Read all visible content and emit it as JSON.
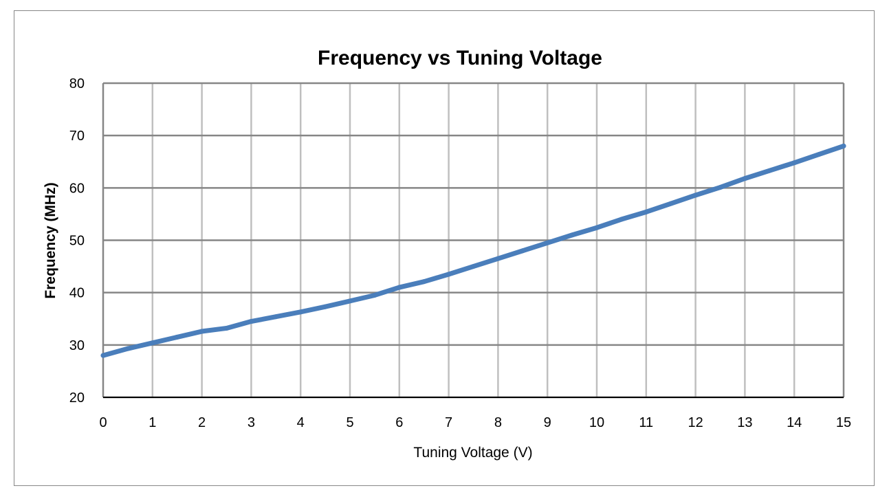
{
  "chart_data": {
    "type": "line",
    "title": "Frequency vs Tuning Voltage",
    "xlabel": "Tuning Voltage (V)",
    "ylabel": "Frequency (MHz)",
    "xlim": [
      0,
      15
    ],
    "ylim": [
      20,
      80
    ],
    "xticks": [
      "0",
      "1",
      "2",
      "3",
      "4",
      "5",
      "6",
      "7",
      "8",
      "9",
      "10",
      "11",
      "12",
      "13",
      "14",
      "15"
    ],
    "yticks": [
      "20",
      "30",
      "40",
      "50",
      "60",
      "70",
      "80"
    ],
    "grid": true,
    "legend": "none",
    "series": [
      {
        "color": "#4a7ebb",
        "x": [
          0,
          0.5,
          1,
          1.5,
          2,
          2.5,
          3,
          3.5,
          4,
          4.5,
          5,
          5.5,
          6,
          6.5,
          7,
          7.5,
          8,
          8.5,
          9,
          9.5,
          10,
          10.5,
          11,
          11.5,
          12,
          12.5,
          13,
          13.5,
          14,
          14.5,
          15
        ],
        "y": [
          28,
          29.3,
          30.4,
          31.5,
          32.6,
          33.2,
          34.5,
          35.4,
          36.3,
          37.3,
          38.4,
          39.5,
          41,
          42.1,
          43.5,
          45,
          46.5,
          48,
          49.5,
          51,
          52.4,
          54,
          55.4,
          57,
          58.6,
          60.1,
          61.8,
          63.3,
          64.8,
          66.4,
          68
        ]
      }
    ]
  }
}
